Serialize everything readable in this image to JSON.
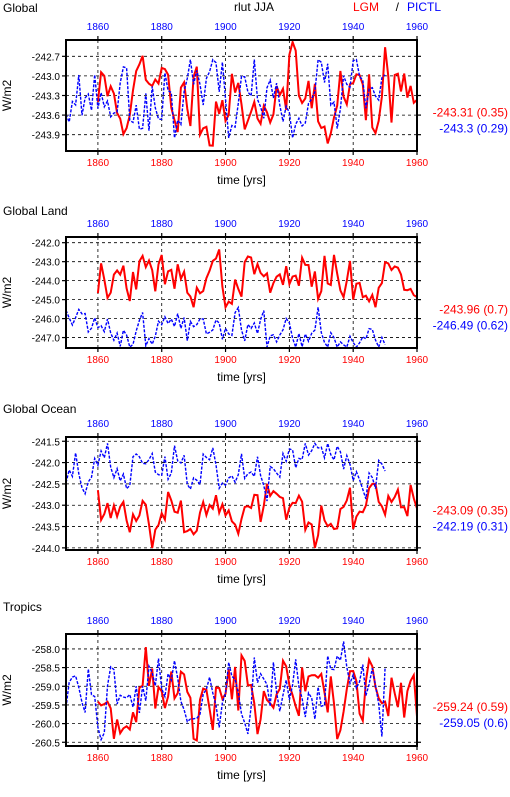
{
  "header": {
    "var_title": "rlut JJA",
    "legend_lgm": "LGM",
    "legend_sep": "/",
    "legend_pictl": "PICTL"
  },
  "colors": {
    "lgm": "#ff0000",
    "pictl": "#0000ff",
    "grid": "#000000",
    "axis": "#000000"
  },
  "chart_data": [
    {
      "type": "line",
      "title": "Global",
      "xlabel": "time [yrs]",
      "ylabel": "W/m2",
      "xlim_bottom": [
        1850,
        1960
      ],
      "xticks_bottom": [
        "1860",
        "1880",
        "1900",
        "1920",
        "1940",
        "1960"
      ],
      "xticks_top": [
        "1860",
        "1880",
        "1900",
        "1920",
        "1940",
        "1960"
      ],
      "ylim": [
        -244.15,
        -242.45
      ],
      "yticks": [
        -242.7,
        -243.0,
        -243.3,
        -243.6,
        -243.9
      ],
      "ytick_labels": [
        "-242.7",
        "-243.0",
        "-243.3",
        "-243.6",
        "-243.9"
      ],
      "grid": "dashed",
      "series": [
        {
          "name": "LGM",
          "years": [
            1860,
            1960
          ],
          "mean": -243.31,
          "std": 0.35,
          "stat_label": "-243.31 (0.35)",
          "min": -244.12,
          "max": -242.48,
          "seed": 11
        },
        {
          "name": "PICTL",
          "years": [
            1850,
            1950
          ],
          "mean": -243.3,
          "std": 0.29,
          "stat_label": "-243.3 (0.29)",
          "min": -243.95,
          "max": -242.75,
          "seed": 23
        }
      ]
    },
    {
      "type": "line",
      "title": "Global Land",
      "xlabel": "time [yrs]",
      "ylabel": "W/m2",
      "xlim_bottom": [
        1850,
        1960
      ],
      "xticks_bottom": [
        "1860",
        "1880",
        "1900",
        "1920",
        "1940",
        "1960"
      ],
      "xticks_top": [
        "1860",
        "1880",
        "1900",
        "1920",
        "1940",
        "1960"
      ],
      "ylim": [
        -247.55,
        -241.7
      ],
      "yticks": [
        -242.0,
        -243.0,
        -244.0,
        -245.0,
        -246.0,
        -247.0
      ],
      "ytick_labels": [
        "-242.0",
        "-243.0",
        "-244.0",
        "-245.0",
        "-246.0",
        "-247.0"
      ],
      "grid": "dashed",
      "series": [
        {
          "name": "LGM",
          "years": [
            1860,
            1960
          ],
          "mean": -243.96,
          "std": 0.7,
          "stat_label": "-243.96 (0.7)",
          "min": -245.4,
          "max": -242.1,
          "seed": 37
        },
        {
          "name": "PICTL",
          "years": [
            1850,
            1950
          ],
          "mean": -246.49,
          "std": 0.62,
          "stat_label": "-246.49 (0.62)",
          "min": -247.5,
          "max": -245.4,
          "seed": 41
        }
      ]
    },
    {
      "type": "line",
      "title": "Global Ocean",
      "xlabel": "time [yrs]",
      "ylabel": "W/m2",
      "xlim_bottom": [
        1850,
        1960
      ],
      "xticks_bottom": [
        "1860",
        "1880",
        "1900",
        "1920",
        "1940",
        "1960"
      ],
      "xticks_top": [
        "1860",
        "1880",
        "1900",
        "1920",
        "1940",
        "1960"
      ],
      "ylim": [
        -244.05,
        -241.4
      ],
      "yticks": [
        -241.5,
        -242.0,
        -242.5,
        -243.0,
        -243.5,
        -244.0
      ],
      "ytick_labels": [
        "-241.5",
        "-242.0",
        "-242.5",
        "-243.0",
        "-243.5",
        "-244.0"
      ],
      "grid": "dashed",
      "series": [
        {
          "name": "LGM",
          "years": [
            1860,
            1960
          ],
          "mean": -243.09,
          "std": 0.35,
          "stat_label": "-243.09 (0.35)",
          "min": -244.0,
          "max": -242.5,
          "seed": 53
        },
        {
          "name": "PICTL",
          "years": [
            1850,
            1950
          ],
          "mean": -242.19,
          "std": 0.31,
          "stat_label": "-242.19 (0.31)",
          "min": -242.9,
          "max": -241.55,
          "seed": 67
        }
      ]
    },
    {
      "type": "line",
      "title": "Tropics",
      "xlabel": "time [yrs]",
      "ylabel": "W/m2",
      "xlim_bottom": [
        1850,
        1960
      ],
      "xticks_bottom": [
        "1860",
        "1880",
        "1900",
        "1920",
        "1940",
        "1960"
      ],
      "xticks_top": [
        "1860",
        "1880",
        "1900",
        "1920",
        "1940",
        "1960"
      ],
      "ylim": [
        -260.6,
        -257.6
      ],
      "yticks": [
        -258.0,
        -258.5,
        -259.0,
        -259.5,
        -260.0,
        -260.5
      ],
      "ytick_labels": [
        "-258.0",
        "-258.5",
        "-259.0",
        "-259.5",
        "-260.0",
        "-260.5"
      ],
      "grid": "dashed",
      "series": [
        {
          "name": "LGM",
          "years": [
            1860,
            1960
          ],
          "mean": -259.24,
          "std": 0.59,
          "stat_label": "-259.24 (0.59)",
          "min": -260.45,
          "max": -257.95,
          "seed": 71
        },
        {
          "name": "PICTL",
          "years": [
            1850,
            1950
          ],
          "mean": -259.05,
          "std": 0.6,
          "stat_label": "-259.05 (0.6)",
          "min": -260.55,
          "max": -257.8,
          "seed": 89
        }
      ]
    }
  ]
}
